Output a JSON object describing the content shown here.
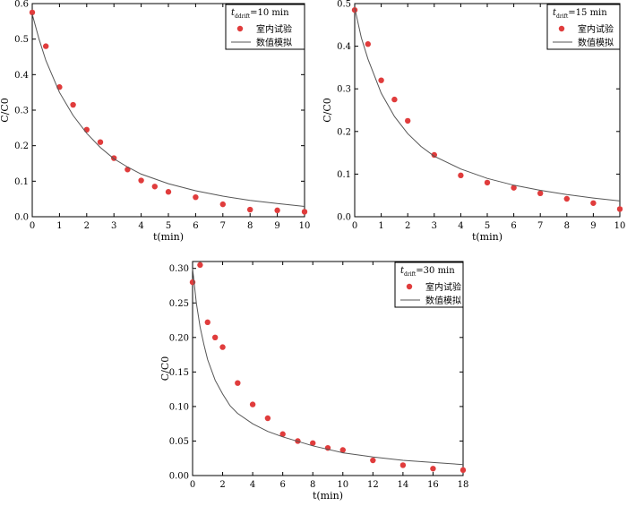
{
  "chart_data": [
    {
      "type": "scatter",
      "legend_title": {
        "var": "t",
        "sub": "ddrift",
        "value": "=10 min"
      },
      "xlabel": "t(min)",
      "ylabel": "C/C0",
      "xlim": [
        0,
        10
      ],
      "ylim": [
        0,
        0.6
      ],
      "xticks": [
        0,
        1,
        2,
        3,
        4,
        5,
        6,
        7,
        8,
        9,
        10
      ],
      "yticks": [
        0.0,
        0.1,
        0.2,
        0.3,
        0.4,
        0.5,
        0.6
      ],
      "ytick_labels": [
        "0.0",
        "0.1",
        "0.2",
        "0.3",
        "0.4",
        "0.5",
        "0.6"
      ],
      "legend_position": "top-right",
      "series": [
        {
          "name": "室内试验",
          "kind": "scatter",
          "color": "#e03c3c",
          "x": [
            0,
            0.5,
            1,
            1.5,
            2,
            2.5,
            3,
            3.5,
            4,
            4.5,
            5,
            6,
            7,
            8,
            9,
            10
          ],
          "y": [
            0.575,
            0.48,
            0.365,
            0.315,
            0.245,
            0.21,
            0.165,
            0.133,
            0.102,
            0.085,
            0.07,
            0.055,
            0.035,
            0.02,
            0.018,
            0.014
          ]
        },
        {
          "name": "数值模拟",
          "kind": "line",
          "color": "#555555",
          "x": [
            0,
            0.25,
            0.5,
            1,
            1.5,
            2,
            2.5,
            3,
            3.5,
            4,
            5,
            6,
            7,
            8,
            9,
            10
          ],
          "y": [
            0.57,
            0.5,
            0.44,
            0.35,
            0.285,
            0.235,
            0.195,
            0.163,
            0.14,
            0.12,
            0.093,
            0.073,
            0.058,
            0.046,
            0.037,
            0.029
          ]
        }
      ]
    },
    {
      "type": "scatter",
      "legend_title": {
        "var": "t",
        "sub": "drift",
        "value": "=15 min"
      },
      "xlabel": "t(min)",
      "ylabel": "C/C0",
      "xlim": [
        0,
        10
      ],
      "ylim": [
        0,
        0.5
      ],
      "xticks": [
        0,
        1,
        2,
        3,
        4,
        5,
        6,
        7,
        8,
        9,
        10
      ],
      "yticks": [
        0.0,
        0.1,
        0.2,
        0.3,
        0.4,
        0.5
      ],
      "ytick_labels": [
        "0.0",
        "0.1",
        "0.2",
        "0.3",
        "0.4",
        "0.5"
      ],
      "legend_position": "top-right",
      "series": [
        {
          "name": "室内试验",
          "kind": "scatter",
          "color": "#e03c3c",
          "x": [
            0,
            0.5,
            1,
            1.5,
            2,
            3,
            4,
            5,
            6,
            7,
            8,
            9,
            10
          ],
          "y": [
            0.485,
            0.405,
            0.32,
            0.275,
            0.225,
            0.145,
            0.097,
            0.08,
            0.068,
            0.055,
            0.042,
            0.032,
            0.018
          ]
        },
        {
          "name": "数值模拟",
          "kind": "line",
          "color": "#555555",
          "x": [
            0,
            0.25,
            0.5,
            1,
            1.5,
            2,
            2.5,
            3,
            4,
            5,
            6,
            7,
            8,
            9,
            10
          ],
          "y": [
            0.49,
            0.42,
            0.37,
            0.29,
            0.235,
            0.195,
            0.165,
            0.142,
            0.112,
            0.09,
            0.074,
            0.062,
            0.052,
            0.044,
            0.037
          ]
        }
      ]
    },
    {
      "type": "scatter",
      "legend_title": {
        "var": "t",
        "sub": "drift",
        "value": "=30 min"
      },
      "xlabel": "t(min)",
      "ylabel": "C/C0",
      "xlim": [
        0,
        18
      ],
      "ylim": [
        0,
        0.31
      ],
      "xticks": [
        0,
        2,
        4,
        6,
        8,
        10,
        12,
        14,
        16,
        18
      ],
      "yticks": [
        0.0,
        0.05,
        0.1,
        0.15,
        0.2,
        0.25,
        0.3
      ],
      "ytick_labels": [
        "0.00",
        "0.05",
        "0.10",
        "0.15",
        "0.20",
        "0.25",
        "0.30"
      ],
      "legend_position": "top-right",
      "series": [
        {
          "name": "室内试验",
          "kind": "scatter",
          "color": "#e03c3c",
          "x": [
            0,
            0.5,
            1,
            1.5,
            2,
            3,
            4,
            5,
            6,
            7,
            8,
            9,
            10,
            12,
            14,
            16,
            18
          ],
          "y": [
            0.28,
            0.305,
            0.222,
            0.2,
            0.186,
            0.134,
            0.103,
            0.083,
            0.06,
            0.05,
            0.047,
            0.04,
            0.037,
            0.022,
            0.015,
            0.01,
            0.008
          ]
        },
        {
          "name": "数值模拟",
          "kind": "line",
          "color": "#555555",
          "x": [
            0,
            0.25,
            0.5,
            0.75,
            1,
            1.5,
            2,
            2.5,
            3,
            4,
            5,
            6,
            8,
            10,
            12,
            14,
            16,
            18
          ],
          "y": [
            0.3,
            0.25,
            0.215,
            0.19,
            0.168,
            0.138,
            0.118,
            0.101,
            0.09,
            0.075,
            0.064,
            0.056,
            0.043,
            0.033,
            0.027,
            0.022,
            0.019,
            0.016
          ]
        }
      ]
    }
  ]
}
